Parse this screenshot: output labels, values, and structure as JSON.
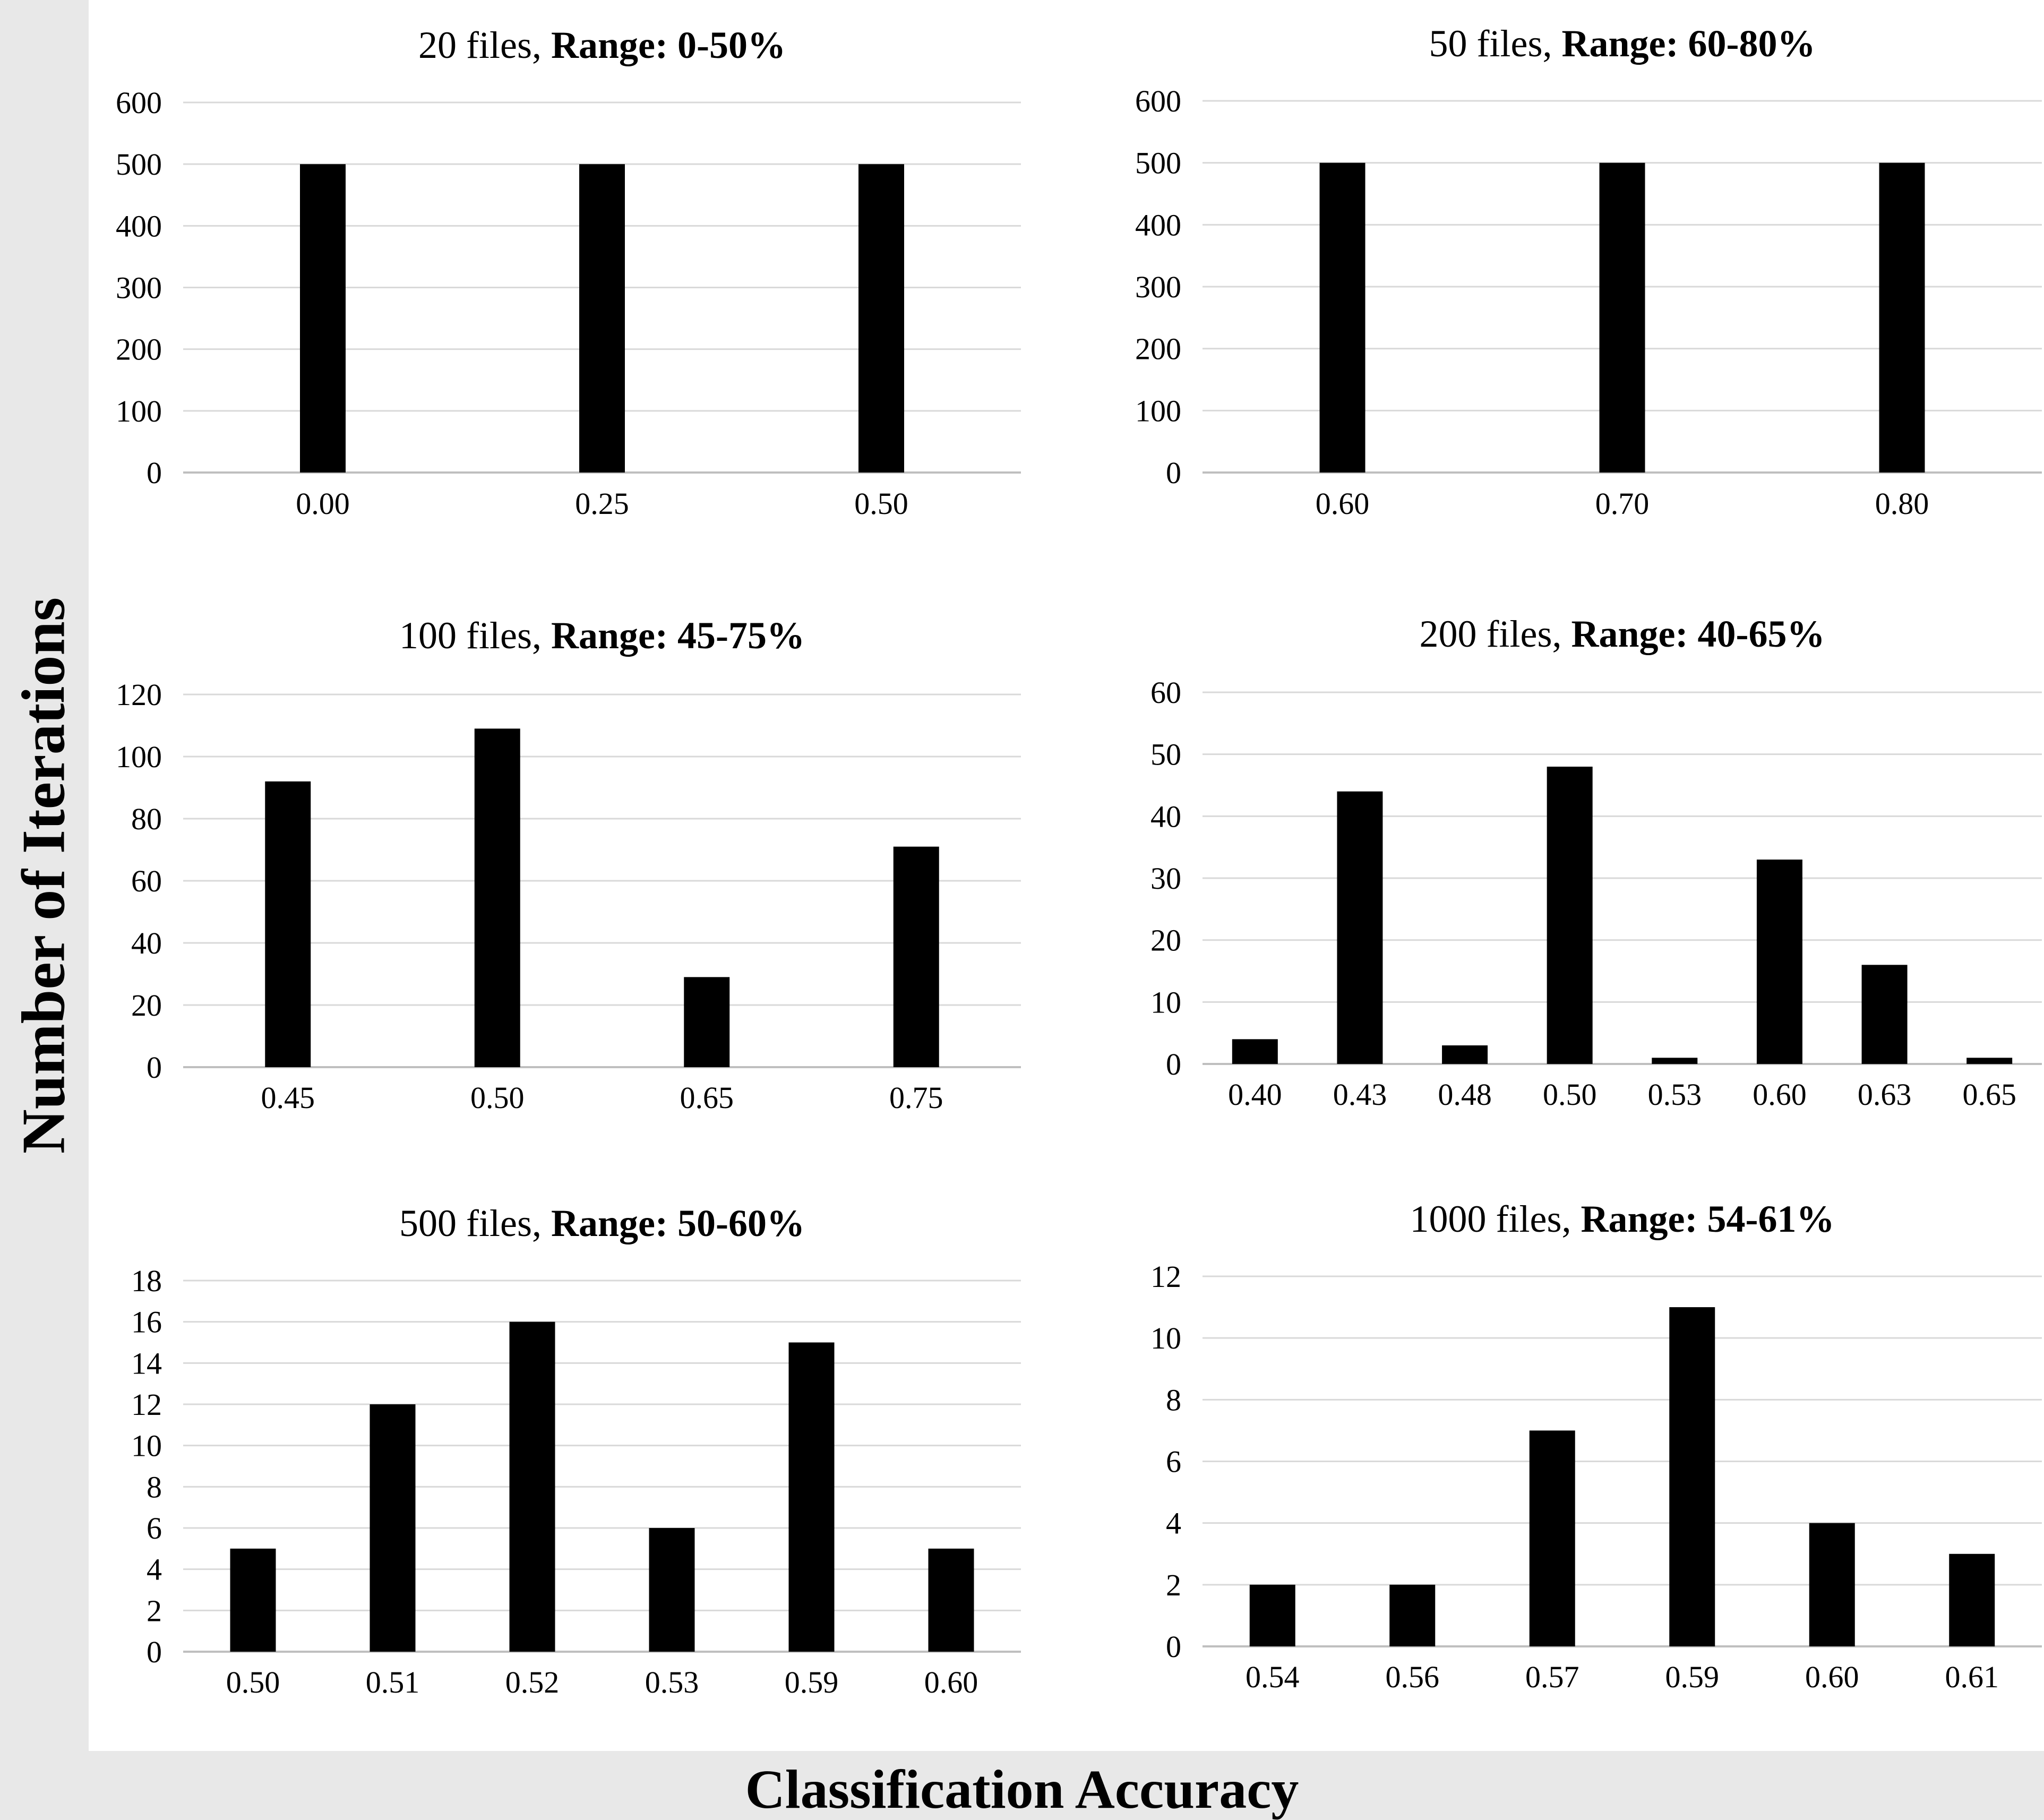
{
  "figure": {
    "ylabel": "Number of Iterations",
    "xlabel": "Classification Accuracy",
    "colors": {
      "bar": "#000000",
      "grid": "#d9d9d9",
      "axis": "#bfbfbf",
      "panel": "#ffffff",
      "background": "#e8e8e8"
    }
  },
  "chart_data": [
    {
      "type": "bar",
      "title_plain": "20 files, ",
      "title_bold": "Range: 0-50%",
      "categories": [
        "0.00",
        "0.25",
        "0.50"
      ],
      "values": [
        500,
        500,
        500
      ],
      "ylim": [
        0,
        600
      ],
      "yticks": [
        "0",
        "100",
        "200",
        "300",
        "400",
        "500",
        "600"
      ],
      "grid": true
    },
    {
      "type": "bar",
      "title_plain": "50 files, ",
      "title_bold": "Range: 60-80%",
      "categories": [
        "0.60",
        "0.70",
        "0.80"
      ],
      "values": [
        500,
        500,
        500
      ],
      "ylim": [
        0,
        600
      ],
      "yticks": [
        "0",
        "100",
        "200",
        "300",
        "400",
        "500",
        "600"
      ],
      "grid": true
    },
    {
      "type": "bar",
      "title_plain": "100 files, ",
      "title_bold": "Range: 45-75%",
      "categories": [
        "0.45",
        "0.50",
        "0.65",
        "0.75"
      ],
      "values": [
        92,
        109,
        29,
        71
      ],
      "ylim": [
        0,
        120
      ],
      "yticks": [
        "0",
        "20",
        "40",
        "60",
        "80",
        "100",
        "120"
      ],
      "grid": true
    },
    {
      "type": "bar",
      "title_plain": "200 files, ",
      "title_bold": "Range: 40-65%",
      "categories": [
        "0.40",
        "0.43",
        "0.48",
        "0.50",
        "0.53",
        "0.60",
        "0.63",
        "0.65"
      ],
      "values": [
        4,
        44,
        3,
        48,
        1,
        33,
        16,
        1
      ],
      "ylim": [
        0,
        60
      ],
      "yticks": [
        "0",
        "10",
        "20",
        "30",
        "40",
        "50",
        "60"
      ],
      "grid": true
    },
    {
      "type": "bar",
      "title_plain": "500 files, ",
      "title_bold": "Range: 50-60%",
      "categories": [
        "0.50",
        "0.51",
        "0.52",
        "0.53",
        "0.59",
        "0.60"
      ],
      "values": [
        5,
        12,
        16,
        6,
        15,
        5
      ],
      "ylim": [
        0,
        18
      ],
      "yticks": [
        "0",
        "2",
        "4",
        "6",
        "8",
        "10",
        "12",
        "14",
        "16",
        "18"
      ],
      "grid": true
    },
    {
      "type": "bar",
      "title_plain": "1000 files, ",
      "title_bold": "Range: 54-61%",
      "categories": [
        "0.54",
        "0.56",
        "0.57",
        "0.59",
        "0.60",
        "0.61"
      ],
      "values": [
        2,
        2,
        7,
        11,
        4,
        3
      ],
      "ylim": [
        0,
        12
      ],
      "yticks": [
        "0",
        "2",
        "4",
        "6",
        "8",
        "10",
        "12"
      ],
      "grid": true
    }
  ]
}
